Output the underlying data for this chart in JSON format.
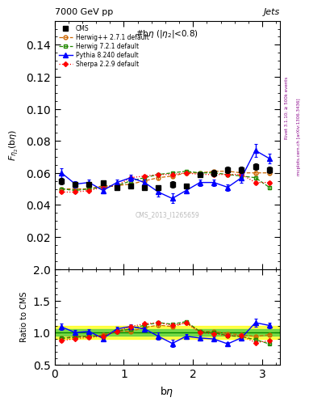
{
  "title_top": "7000 GeV pp",
  "title_right": "Jets",
  "plot_title": "#bη (|η₂|<0.8)",
  "xlabel": "bη",
  "ylabel_main": "F_{η_2}(bη)",
  "ylabel_ratio": "Ratio to CMS",
  "watermark": "CMS_2013_I1265659",
  "cms_x": [
    0.1,
    0.3,
    0.5,
    0.7,
    0.9,
    1.1,
    1.3,
    1.5,
    1.7,
    1.9,
    2.1,
    2.3,
    2.5,
    2.7,
    2.9,
    3.1
  ],
  "cms_y": [
    0.055,
    0.053,
    0.053,
    0.054,
    0.051,
    0.052,
    0.051,
    0.051,
    0.053,
    0.052,
    0.059,
    0.06,
    0.062,
    0.062,
    0.064,
    0.062
  ],
  "cms_yerr": [
    0.002,
    0.001,
    0.001,
    0.001,
    0.001,
    0.001,
    0.001,
    0.001,
    0.002,
    0.001,
    0.001,
    0.002,
    0.002,
    0.002,
    0.002,
    0.002
  ],
  "herwig_x": [
    0.1,
    0.3,
    0.5,
    0.7,
    0.9,
    1.1,
    1.3,
    1.5,
    1.7,
    1.9,
    2.1,
    2.3,
    2.5,
    2.7,
    2.9,
    3.1
  ],
  "herwig_y": [
    0.05,
    0.05,
    0.05,
    0.052,
    0.052,
    0.053,
    0.055,
    0.057,
    0.058,
    0.06,
    0.06,
    0.061,
    0.061,
    0.06,
    0.06,
    0.06
  ],
  "herwig_yerr": [
    0.001,
    0.001,
    0.001,
    0.001,
    0.001,
    0.001,
    0.001,
    0.001,
    0.001,
    0.001,
    0.001,
    0.001,
    0.001,
    0.001,
    0.001,
    0.001
  ],
  "herwig7_x": [
    0.1,
    0.3,
    0.5,
    0.7,
    0.9,
    1.1,
    1.3,
    1.5,
    1.7,
    1.9,
    2.1,
    2.3,
    2.5,
    2.7,
    2.9,
    3.1
  ],
  "herwig7_y": [
    0.05,
    0.049,
    0.05,
    0.051,
    0.052,
    0.055,
    0.057,
    0.059,
    0.06,
    0.061,
    0.06,
    0.06,
    0.059,
    0.058,
    0.057,
    0.051
  ],
  "herwig7_yerr": [
    0.001,
    0.001,
    0.001,
    0.001,
    0.001,
    0.001,
    0.001,
    0.001,
    0.001,
    0.001,
    0.001,
    0.001,
    0.001,
    0.001,
    0.001,
    0.001
  ],
  "pythia_x": [
    0.1,
    0.3,
    0.5,
    0.7,
    0.9,
    1.1,
    1.3,
    1.5,
    1.7,
    1.9,
    2.1,
    2.3,
    2.5,
    2.7,
    2.9,
    3.1
  ],
  "pythia_y": [
    0.06,
    0.053,
    0.054,
    0.049,
    0.054,
    0.057,
    0.054,
    0.048,
    0.044,
    0.049,
    0.054,
    0.054,
    0.051,
    0.057,
    0.074,
    0.069
  ],
  "pythia_yerr": [
    0.003,
    0.002,
    0.002,
    0.002,
    0.002,
    0.002,
    0.002,
    0.003,
    0.003,
    0.002,
    0.002,
    0.002,
    0.002,
    0.003,
    0.004,
    0.003
  ],
  "sherpa_x": [
    0.1,
    0.3,
    0.5,
    0.7,
    0.9,
    1.1,
    1.3,
    1.5,
    1.7,
    1.9,
    2.1,
    2.3,
    2.5,
    2.7,
    2.9,
    3.1
  ],
  "sherpa_y": [
    0.048,
    0.048,
    0.049,
    0.051,
    0.052,
    0.057,
    0.058,
    0.059,
    0.059,
    0.06,
    0.059,
    0.059,
    0.059,
    0.059,
    0.054,
    0.054
  ],
  "sherpa_yerr": [
    0.001,
    0.001,
    0.001,
    0.001,
    0.001,
    0.001,
    0.001,
    0.001,
    0.001,
    0.001,
    0.001,
    0.001,
    0.001,
    0.001,
    0.001,
    0.001
  ],
  "ylim_main": [
    0.0,
    0.155
  ],
  "ylim_ratio": [
    0.5,
    2.0
  ],
  "xlim": [
    0.0,
    3.25
  ],
  "color_cms": "#000000",
  "color_herwig": "#cc6600",
  "color_herwig7": "#228800",
  "color_pythia": "#0000ff",
  "color_sherpa": "#ff0000",
  "ratio_band_yellow": 0.1,
  "ratio_band_green": 0.05,
  "yticks_main": [
    0.02,
    0.04,
    0.06,
    0.08,
    0.1,
    0.12,
    0.14
  ],
  "yticks_ratio": [
    0.5,
    1.0,
    1.5,
    2.0
  ],
  "xticks": [
    0,
    1,
    2,
    3
  ]
}
